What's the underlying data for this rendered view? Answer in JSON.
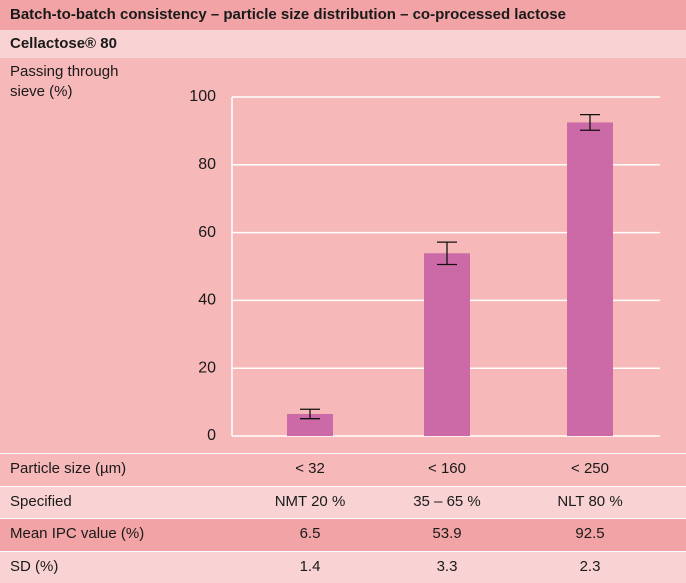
{
  "chart_data": {
    "type": "bar",
    "title": "Batch-to-batch consistency – particle size distribution – co-processed lactose",
    "subtitle": "Cellactose® 80",
    "y_label": "Passing through sieve (%)",
    "x_label": "Particle size (µm)",
    "categories": [
      "< 32",
      "< 160",
      "< 250"
    ],
    "values": [
      6.5,
      53.9,
      92.5
    ],
    "errors": [
      1.4,
      3.3,
      2.3
    ],
    "color": "#cc6aa8",
    "ylim": [
      0,
      100
    ],
    "yticks": [
      0,
      20,
      40,
      60,
      80,
      100
    ],
    "grid": true
  },
  "table": {
    "rows": [
      {
        "label": "Specified",
        "cells": [
          "NMT 20 %",
          "35 – 65 %",
          "NLT 80 %"
        ]
      },
      {
        "label": "Mean IPC value (%)"
      },
      {
        "label": "SD (%)"
      }
    ]
  }
}
